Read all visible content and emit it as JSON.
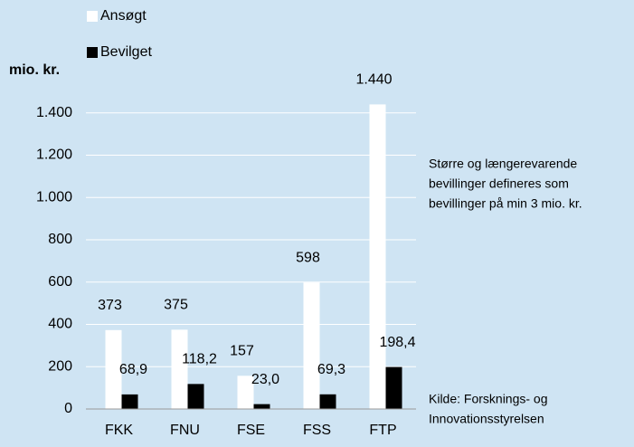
{
  "chart_data": {
    "type": "bar",
    "y_label": "mio. kr.",
    "categories": [
      "FKK",
      "FNU",
      "FSE",
      "FSS",
      "FTP"
    ],
    "series": [
      {
        "name": "Ansøgt",
        "color": "#ffffff",
        "values": [
          373,
          375,
          157,
          598,
          1440
        ],
        "value_labels": [
          "373",
          "375",
          "157",
          "598",
          "1.440"
        ]
      },
      {
        "name": "Bevilget",
        "color": "#000000",
        "values": [
          68.9,
          118.2,
          23.0,
          69.3,
          198.4
        ],
        "value_labels": [
          "68,9",
          "118,2",
          "23,0",
          "69,3",
          "198,4"
        ]
      }
    ],
    "ylim": [
      0,
      1600
    ],
    "yticks": [
      0,
      200,
      400,
      600,
      800,
      {
        "value": 1000,
        "label": "1.000"
      },
      {
        "value": 1200,
        "label": "1.200"
      },
      {
        "value": 1400,
        "label": "1.400"
      }
    ],
    "grid": true,
    "legend": "top",
    "notes": [
      [
        "Større og længerevarende",
        "bevillinger defineres som",
        "bevillinger på min 3 mio. kr."
      ],
      [
        "Kilde: Forsknings- og",
        "Innovationsstyrelsen"
      ]
    ]
  }
}
